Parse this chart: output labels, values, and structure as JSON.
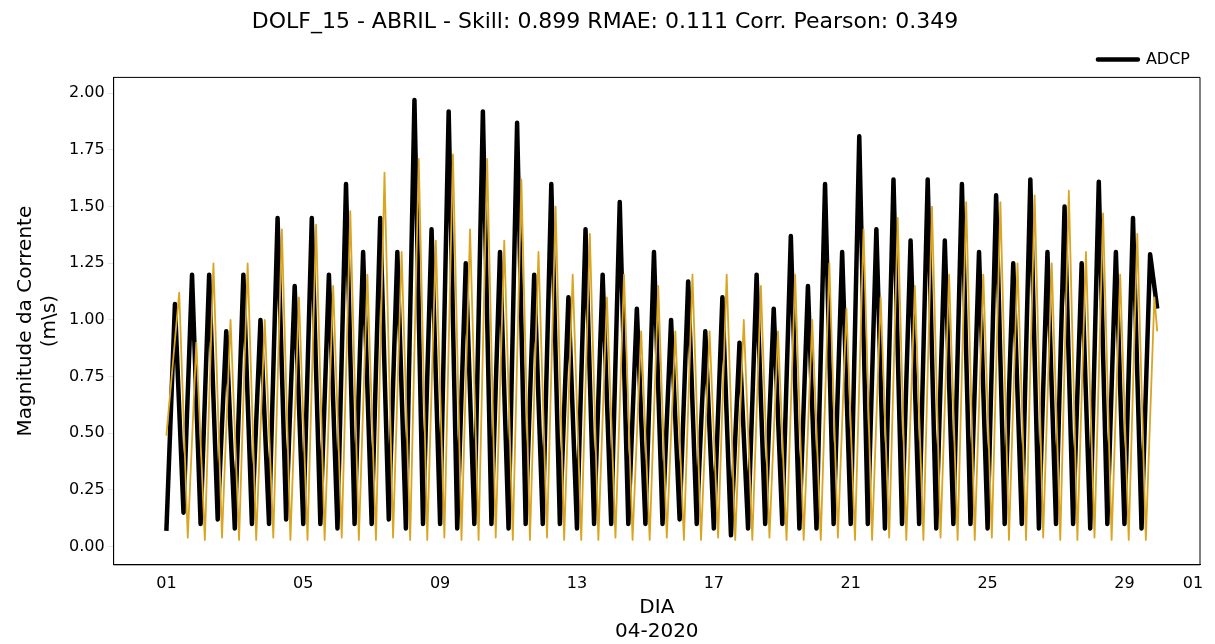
{
  "chart_data": {
    "type": "line",
    "title": "DOLF_15 - ABRIL - Skill: 0.899 RMAE: 0.111 Corr. Pearson: 0.349",
    "xlabel": "DIA\n04-2020",
    "ylabel": "Magnitude da Corrente\n(m\\s)",
    "x": [
      "2020-04-01T00:00",
      "2020-04-01T06:00",
      "2020-04-01T12:00",
      "2020-04-01T18:00",
      "2020-04-02T00:00",
      "2020-04-02T06:00",
      "2020-04-02T12:00",
      "2020-04-02T18:00",
      "2020-04-03T00:00",
      "2020-04-03T06:00",
      "2020-04-03T12:00",
      "2020-04-03T18:00",
      "2020-04-04T00:00",
      "2020-04-04T06:00",
      "2020-04-04T12:00",
      "2020-04-04T18:00",
      "2020-04-05T00:00",
      "2020-04-05T06:00",
      "2020-04-05T12:00",
      "2020-04-05T18:00",
      "2020-04-06T00:00",
      "2020-04-06T06:00",
      "2020-04-06T12:00",
      "2020-04-06T18:00",
      "2020-04-07T00:00",
      "2020-04-07T06:00",
      "2020-04-07T12:00",
      "2020-04-07T18:00",
      "2020-04-08T00:00",
      "2020-04-08T06:00",
      "2020-04-08T12:00",
      "2020-04-08T18:00",
      "2020-04-09T00:00",
      "2020-04-09T06:00",
      "2020-04-09T12:00",
      "2020-04-09T18:00",
      "2020-04-10T00:00",
      "2020-04-10T06:00",
      "2020-04-10T12:00",
      "2020-04-10T18:00",
      "2020-04-11T00:00",
      "2020-04-11T06:00",
      "2020-04-11T12:00",
      "2020-04-11T18:00",
      "2020-04-12T00:00",
      "2020-04-12T06:00",
      "2020-04-12T12:00",
      "2020-04-12T18:00",
      "2020-04-13T00:00",
      "2020-04-13T06:00",
      "2020-04-13T12:00",
      "2020-04-13T18:00",
      "2020-04-14T00:00",
      "2020-04-14T06:00",
      "2020-04-14T12:00",
      "2020-04-14T18:00",
      "2020-04-15T00:00",
      "2020-04-15T06:00",
      "2020-04-15T12:00",
      "2020-04-15T18:00",
      "2020-04-16T00:00",
      "2020-04-16T06:00",
      "2020-04-16T12:00",
      "2020-04-16T18:00",
      "2020-04-17T00:00",
      "2020-04-17T06:00",
      "2020-04-17T12:00",
      "2020-04-17T18:00",
      "2020-04-18T00:00",
      "2020-04-18T06:00",
      "2020-04-18T12:00",
      "2020-04-18T18:00",
      "2020-04-19T00:00",
      "2020-04-19T06:00",
      "2020-04-19T12:00",
      "2020-04-19T18:00",
      "2020-04-20T00:00",
      "2020-04-20T06:00",
      "2020-04-20T12:00",
      "2020-04-20T18:00",
      "2020-04-21T00:00",
      "2020-04-21T06:00",
      "2020-04-21T12:00",
      "2020-04-21T18:00",
      "2020-04-22T00:00",
      "2020-04-22T06:00",
      "2020-04-22T12:00",
      "2020-04-22T18:00",
      "2020-04-23T00:00",
      "2020-04-23T06:00",
      "2020-04-23T12:00",
      "2020-04-23T18:00",
      "2020-04-24T00:00",
      "2020-04-24T06:00",
      "2020-04-24T12:00",
      "2020-04-24T18:00",
      "2020-04-25T00:00",
      "2020-04-25T06:00",
      "2020-04-25T12:00",
      "2020-04-25T18:00",
      "2020-04-26T00:00",
      "2020-04-26T06:00",
      "2020-04-26T12:00",
      "2020-04-26T18:00",
      "2020-04-27T00:00",
      "2020-04-27T06:00",
      "2020-04-27T12:00",
      "2020-04-27T18:00",
      "2020-04-28T00:00",
      "2020-04-28T06:00",
      "2020-04-28T12:00",
      "2020-04-28T18:00",
      "2020-04-29T00:00",
      "2020-04-29T06:00",
      "2020-04-29T12:00",
      "2020-04-29T18:00",
      "2020-04-29T23:00"
    ],
    "series": [
      {
        "name": "ADCP",
        "color": "#000000",
        "values": [
          0.07,
          1.07,
          0.15,
          1.2,
          0.1,
          1.2,
          0.12,
          0.95,
          0.08,
          1.2,
          0.1,
          1.0,
          0.1,
          1.45,
          0.12,
          1.15,
          0.1,
          1.45,
          0.1,
          1.2,
          0.08,
          1.6,
          0.1,
          1.3,
          0.1,
          1.45,
          0.12,
          1.3,
          0.08,
          1.97,
          0.1,
          1.4,
          0.1,
          1.92,
          0.08,
          1.25,
          0.1,
          1.92,
          0.1,
          1.3,
          0.08,
          1.87,
          0.1,
          1.2,
          0.1,
          1.6,
          0.1,
          1.1,
          0.08,
          1.4,
          0.1,
          1.2,
          0.1,
          1.52,
          0.1,
          1.05,
          0.1,
          1.3,
          0.1,
          1.0,
          0.12,
          1.17,
          0.1,
          0.95,
          0.08,
          1.1,
          0.05,
          0.9,
          0.08,
          1.2,
          0.1,
          1.05,
          0.1,
          1.37,
          0.08,
          1.15,
          0.08,
          1.6,
          0.1,
          1.3,
          0.1,
          1.81,
          0.1,
          1.4,
          0.08,
          1.62,
          0.1,
          1.35,
          0.1,
          1.62,
          0.08,
          1.35,
          0.1,
          1.6,
          0.1,
          1.3,
          0.08,
          1.55,
          0.1,
          1.25,
          0.1,
          1.62,
          0.08,
          1.3,
          0.1,
          1.5,
          0.1,
          1.25,
          0.08,
          1.61,
          0.1,
          1.3,
          0.1,
          1.45,
          0.08,
          1.29,
          1.05
        ]
      },
      {
        "color": "#daa520",
        "x": [
          "2020-04-01T00:00",
          "2020-04-01T09:00",
          "2020-04-01T15:00",
          "2020-04-01T21:00",
          "2020-04-02T03:00",
          "2020-04-02T09:00",
          "2020-04-02T15:00",
          "2020-04-02T21:00",
          "2020-04-03T03:00",
          "2020-04-03T09:00",
          "2020-04-03T15:00",
          "2020-04-03T21:00",
          "2020-04-04T03:00",
          "2020-04-04T09:00",
          "2020-04-04T15:00",
          "2020-04-04T21:00",
          "2020-04-05T03:00",
          "2020-04-05T09:00",
          "2020-04-05T15:00",
          "2020-04-05T21:00",
          "2020-04-06T03:00",
          "2020-04-06T09:00",
          "2020-04-06T15:00",
          "2020-04-06T21:00",
          "2020-04-07T03:00",
          "2020-04-07T09:00",
          "2020-04-07T15:00",
          "2020-04-07T21:00",
          "2020-04-08T03:00",
          "2020-04-08T09:00",
          "2020-04-08T15:00",
          "2020-04-08T21:00",
          "2020-04-09T03:00",
          "2020-04-09T09:00",
          "2020-04-09T15:00",
          "2020-04-09T21:00",
          "2020-04-10T03:00",
          "2020-04-10T09:00",
          "2020-04-10T15:00",
          "2020-04-10T21:00",
          "2020-04-11T03:00",
          "2020-04-11T09:00",
          "2020-04-11T15:00",
          "2020-04-11T21:00",
          "2020-04-12T03:00",
          "2020-04-12T09:00",
          "2020-04-12T15:00",
          "2020-04-12T21:00",
          "2020-04-13T03:00",
          "2020-04-13T09:00",
          "2020-04-13T15:00",
          "2020-04-13T21:00",
          "2020-04-14T03:00",
          "2020-04-14T09:00",
          "2020-04-14T15:00",
          "2020-04-14T21:00",
          "2020-04-15T03:00",
          "2020-04-15T09:00",
          "2020-04-15T15:00",
          "2020-04-15T21:00",
          "2020-04-16T03:00",
          "2020-04-16T09:00",
          "2020-04-16T15:00",
          "2020-04-16T21:00",
          "2020-04-17T03:00",
          "2020-04-17T09:00",
          "2020-04-17T15:00",
          "2020-04-17T21:00",
          "2020-04-18T03:00",
          "2020-04-18T09:00",
          "2020-04-18T15:00",
          "2020-04-18T21:00",
          "2020-04-19T03:00",
          "2020-04-19T09:00",
          "2020-04-19T15:00",
          "2020-04-19T21:00",
          "2020-04-20T03:00",
          "2020-04-20T09:00",
          "2020-04-20T15:00",
          "2020-04-20T21:00",
          "2020-04-21T03:00",
          "2020-04-21T09:00",
          "2020-04-21T15:00",
          "2020-04-21T21:00",
          "2020-04-22T03:00",
          "2020-04-22T09:00",
          "2020-04-22T15:00",
          "2020-04-22T21:00",
          "2020-04-23T03:00",
          "2020-04-23T09:00",
          "2020-04-23T15:00",
          "2020-04-23T21:00",
          "2020-04-24T03:00",
          "2020-04-24T09:00",
          "2020-04-24T15:00",
          "2020-04-24T21:00",
          "2020-04-25T03:00",
          "2020-04-25T09:00",
          "2020-04-25T15:00",
          "2020-04-25T21:00",
          "2020-04-26T03:00",
          "2020-04-26T09:00",
          "2020-04-26T15:00",
          "2020-04-26T21:00",
          "2020-04-27T03:00",
          "2020-04-27T09:00",
          "2020-04-27T15:00",
          "2020-04-27T21:00",
          "2020-04-28T03:00",
          "2020-04-28T09:00",
          "2020-04-28T15:00",
          "2020-04-28T21:00",
          "2020-04-29T03:00",
          "2020-04-29T09:00",
          "2020-04-29T15:00",
          "2020-04-29T21:00",
          "2020-04-29T23:00"
        ],
        "values": [
          0.49,
          1.12,
          0.04,
          0.9,
          0.03,
          1.25,
          0.04,
          1.0,
          0.03,
          1.25,
          0.03,
          1.0,
          0.04,
          1.4,
          0.03,
          1.1,
          0.03,
          1.42,
          0.03,
          1.15,
          0.04,
          1.48,
          0.03,
          1.2,
          0.03,
          1.65,
          0.04,
          1.3,
          0.03,
          1.71,
          0.03,
          1.35,
          0.04,
          1.73,
          0.03,
          1.4,
          0.03,
          1.71,
          0.04,
          1.35,
          0.03,
          1.62,
          0.03,
          1.3,
          0.04,
          1.5,
          0.03,
          1.2,
          0.03,
          1.38,
          0.03,
          1.1,
          0.04,
          1.2,
          0.03,
          0.95,
          0.03,
          1.15,
          0.04,
          0.95,
          0.03,
          1.2,
          0.03,
          0.95,
          0.04,
          1.2,
          0.03,
          1.0,
          0.03,
          1.15,
          0.04,
          0.95,
          0.03,
          1.2,
          0.03,
          1.0,
          0.03,
          1.25,
          0.04,
          1.05,
          0.03,
          1.4,
          0.03,
          1.1,
          0.04,
          1.45,
          0.03,
          1.15,
          0.03,
          1.5,
          0.04,
          1.2,
          0.03,
          1.52,
          0.03,
          1.2,
          0.04,
          1.52,
          0.03,
          1.25,
          0.03,
          1.55,
          0.04,
          1.25,
          0.03,
          1.57,
          0.03,
          1.3,
          0.04,
          1.47,
          0.03,
          1.2,
          0.03,
          1.38,
          0.03,
          1.1,
          0.95
        ]
      }
    ],
    "xlim": [
      "2020-03-30T11:00",
      "2020-05-01T05:00"
    ],
    "xticks": [
      {
        "value": "2020-04-01",
        "label": "01"
      },
      {
        "value": "2020-04-05",
        "label": "05"
      },
      {
        "value": "2020-04-09",
        "label": "09"
      },
      {
        "value": "2020-04-13",
        "label": "13"
      },
      {
        "value": "2020-04-17",
        "label": "17"
      },
      {
        "value": "2020-04-21",
        "label": "21"
      },
      {
        "value": "2020-04-25",
        "label": "25"
      },
      {
        "value": "2020-04-29",
        "label": "29"
      },
      {
        "value": "2020-05-01",
        "label": "01"
      }
    ],
    "ylim": [
      -0.08,
      2.07
    ],
    "yticks": [
      {
        "value": 0,
        "label": "0.00"
      },
      {
        "value": 0.25,
        "label": "0.25"
      },
      {
        "value": 0.5,
        "label": "0.50"
      },
      {
        "value": 0.75,
        "label": "0.75"
      },
      {
        "value": 1,
        "label": "1.00"
      },
      {
        "value": 1.25,
        "label": "1.25"
      },
      {
        "value": 1.5,
        "label": "1.50"
      },
      {
        "value": 1.75,
        "label": "1.75"
      },
      {
        "value": 2,
        "label": "2.00"
      }
    ],
    "legend": "top right",
    "marker": "none",
    "line_style": "solid"
  }
}
